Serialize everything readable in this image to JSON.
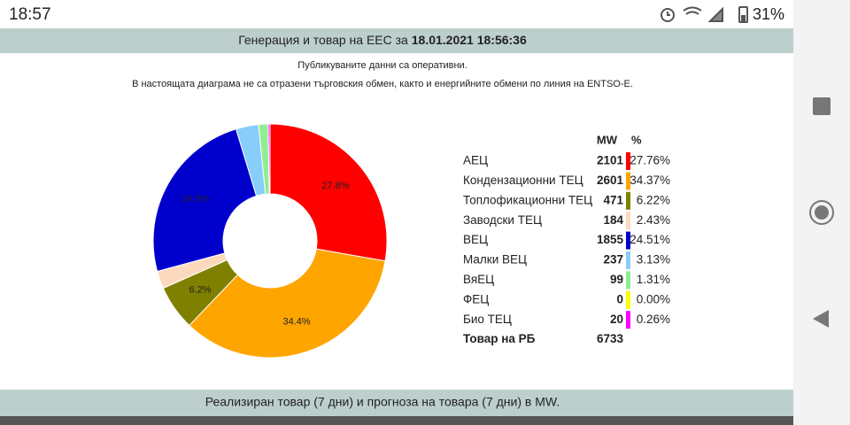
{
  "status_bar": {
    "time": "18:57",
    "battery": "31%"
  },
  "header": {
    "title": "Генерация и товар на ЕЕС за",
    "date": "18.01.2021 18:56:36"
  },
  "notes": [
    "Публикуваните данни са оперативни.",
    "В настоящата диаграма не са отразени търговския обмен, както и енергийните обмени по линия на ENTSO-E."
  ],
  "chart_data": {
    "type": "pie",
    "donut": true,
    "categories": [
      "АЕЦ",
      "Кондензационни ТЕЦ",
      "Топлофикационни ТЕЦ",
      "Заводски ТЕЦ",
      "ВЕЦ",
      "Малки ВЕЦ",
      "ВяЕЦ",
      "ФЕЦ",
      "Био ТЕЦ"
    ],
    "values": [
      27.76,
      34.37,
      6.22,
      2.43,
      24.51,
      3.13,
      1.31,
      0,
      0.26
    ],
    "value_labels": [
      "27.8%",
      "34.4%",
      "6.2%",
      null,
      "24.5%",
      null,
      null,
      null,
      null
    ],
    "colors": [
      "#ff0000",
      "#ffa500",
      "#808000",
      "#fcd9bd",
      "#0000cd",
      "#87cefa",
      "#90ee90",
      "#ffff00",
      "#ff00ff"
    ]
  },
  "table": {
    "headers": [
      "MW",
      "%"
    ],
    "mw": [
      2101,
      2601,
      471,
      184,
      1855,
      237,
      99,
      0,
      20
    ],
    "pct": [
      "27.76%",
      "34.37%",
      "6.22%",
      "2.43%",
      "24.51%",
      "3.13%",
      "1.31%",
      "0.00%",
      "0.26%"
    ],
    "total": {
      "name": "Товар на РБ",
      "mw": 6733
    }
  },
  "footer": {
    "title": "Реализиран товар (7 дни) и прогноза на товара (7 дни) в MW."
  }
}
